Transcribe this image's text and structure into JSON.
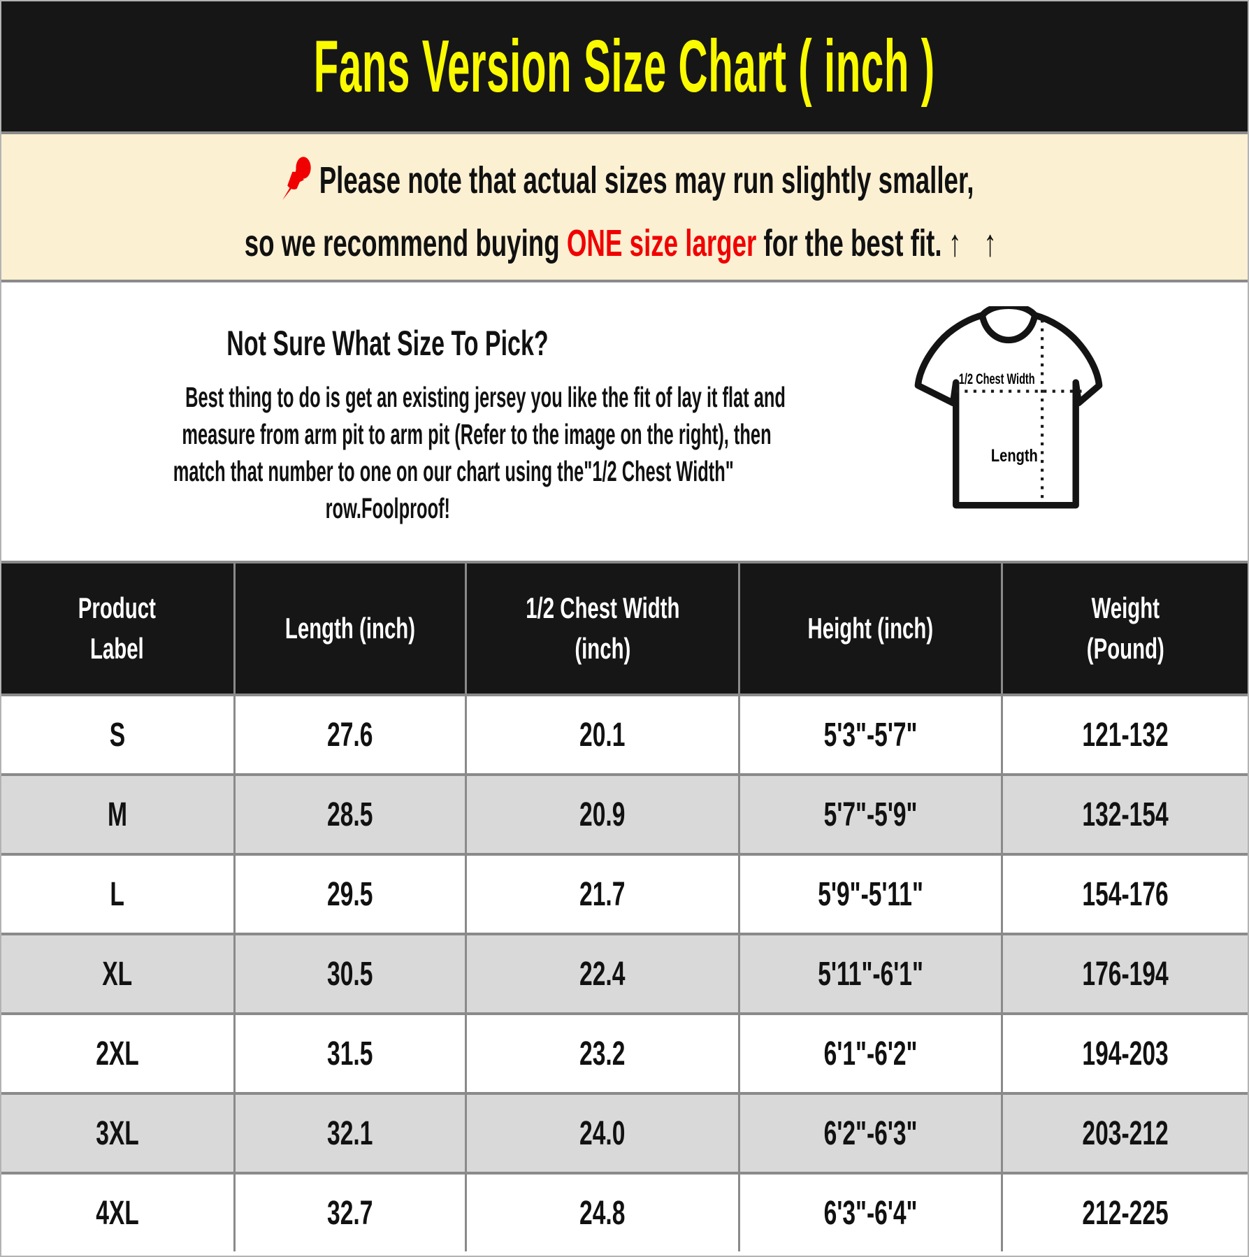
{
  "header": {
    "title": "Fans Version Size Chart ( inch )"
  },
  "note": {
    "line1": "Please note that actual sizes may run slightly smaller,",
    "line2_prefix": "so we recommend buying ",
    "line2_highlight": "ONE size larger",
    "line2_suffix": " for the best fit.",
    "arrows": "↑ ↑"
  },
  "size_help": {
    "heading": "Not Sure What Size To Pick?",
    "body_lines": [
      "Best thing to do is get an existing jersey you like the fit of lay it flat and",
      "measure from arm pit to arm pit (Refer to the image on the right), then",
      "match that number to one on our chart using the\"1/2 Chest Width\"",
      "row.Foolproof!"
    ],
    "diagram": {
      "chest_label": "1/2 Chest Width",
      "length_label": "Length"
    }
  },
  "table": {
    "headers": [
      [
        "Product",
        "Label"
      ],
      [
        "Length (inch)"
      ],
      [
        "1/2 Chest Width",
        "(inch)"
      ],
      [
        "Height (inch)"
      ],
      [
        "Weight",
        "(Pound)"
      ]
    ],
    "rows": [
      {
        "label": "S",
        "length": "27.6",
        "chest": "20.1",
        "height": "5'3\"-5'7\"",
        "weight": "121-132"
      },
      {
        "label": "M",
        "length": "28.5",
        "chest": "20.9",
        "height": "5'7\"-5'9\"",
        "weight": "132-154"
      },
      {
        "label": "L",
        "length": "29.5",
        "chest": "21.7",
        "height": "5'9\"-5'11\"",
        "weight": "154-176"
      },
      {
        "label": "XL",
        "length": "30.5",
        "chest": "22.4",
        "height": "5'11\"-6'1\"",
        "weight": "176-194"
      },
      {
        "label": "2XL",
        "length": "31.5",
        "chest": "23.2",
        "height": "6'1\"-6'2\"",
        "weight": "194-203"
      },
      {
        "label": "3XL",
        "length": "32.1",
        "chest": "24.0",
        "height": "6'2\"-6'3\"",
        "weight": "203-212"
      },
      {
        "label": "4XL",
        "length": "32.7",
        "chest": "24.8",
        "height": "6'3\"-6'4\"",
        "weight": "212-225"
      }
    ]
  },
  "colors": {
    "title_bg": "#161616",
    "title_text": "#FAFA00",
    "note_bg": "#FCF0D3",
    "highlight_red": "#F00000",
    "row_alt": "#D9D9D9",
    "grid_border": "#8A8A8A"
  }
}
